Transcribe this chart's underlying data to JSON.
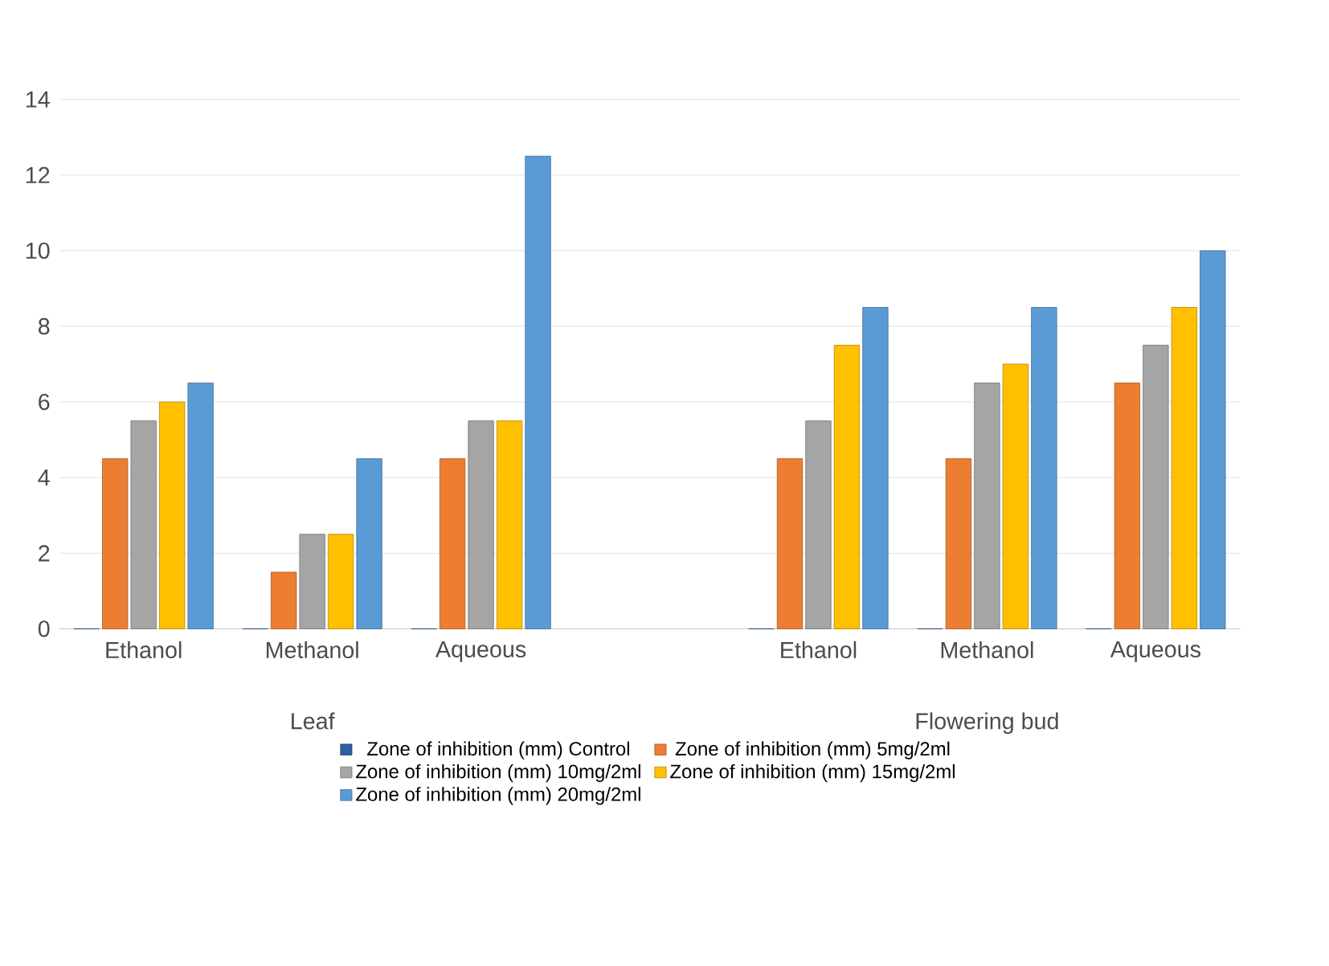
{
  "chart_data": {
    "type": "bar",
    "categories": [
      "Ethanol",
      "Methanol",
      "Aqueous",
      null,
      "Ethanol",
      "Methanol",
      "Aqueous"
    ],
    "series": [
      {
        "name": "Zone of inhibition (mm)  Control",
        "color": "#2e5fa3",
        "values": [
          0,
          0,
          0,
          null,
          0,
          0,
          0
        ]
      },
      {
        "name": "Zone of inhibition (mm)  5mg/2ml",
        "color": "#ed7d31",
        "values": [
          4.5,
          1.5,
          4.5,
          null,
          4.5,
          4.5,
          6.5
        ]
      },
      {
        "name": "Zone of inhibition (mm)  10mg/2ml",
        "color": "#a5a5a5",
        "values": [
          5.5,
          2.5,
          5.5,
          null,
          5.5,
          6.5,
          7.5
        ]
      },
      {
        "name": "Zone of inhibition (mm)  15mg/2ml",
        "color": "#ffc000",
        "values": [
          6,
          2.5,
          5.5,
          null,
          7.5,
          7,
          8.5
        ]
      },
      {
        "name": "Zone of inhibition (mm)  20mg/2ml",
        "color": "#5b9bd5",
        "values": [
          6.5,
          4.5,
          12.5,
          null,
          8.5,
          8.5,
          10
        ]
      }
    ],
    "annotations": [
      "Leaf",
      "Flowering bud"
    ],
    "ylim": [
      0,
      14
    ],
    "yticks": [
      0,
      2,
      4,
      6,
      8,
      10,
      12,
      14
    ],
    "grid": "y",
    "legend": "bottom"
  }
}
